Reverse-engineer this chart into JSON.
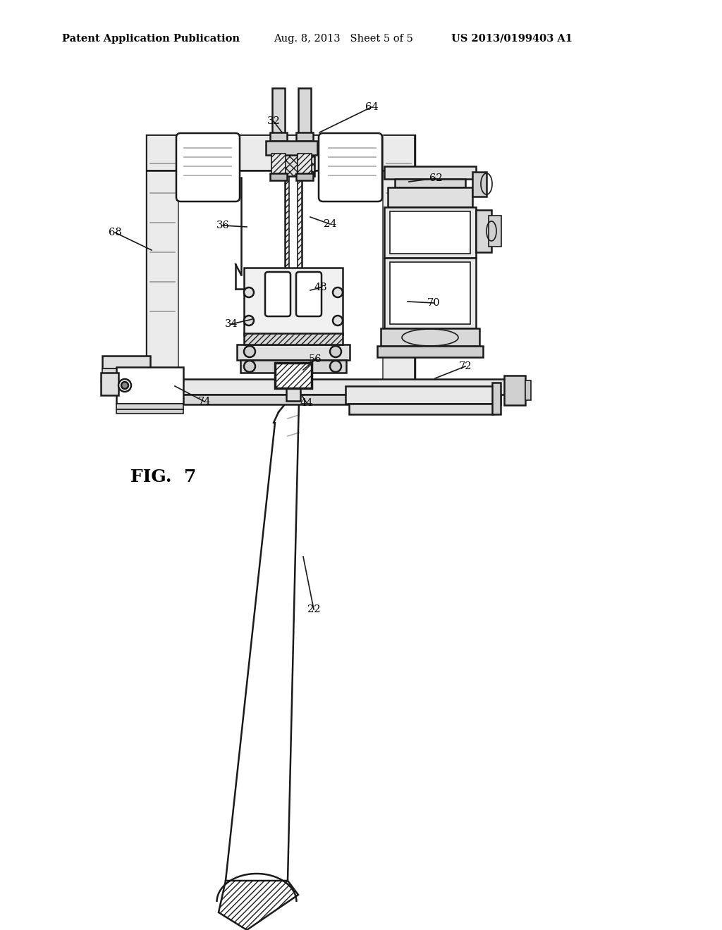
{
  "bg_color": "#ffffff",
  "header_left": "Patent Application Publication",
  "header_mid": "Aug. 8, 2013   Sheet 5 of 5",
  "header_right": "US 2013/0199403 A1",
  "fig_label": "FIG.  7",
  "lc": "#1a1a1a",
  "tc": "#000000",
  "labels": [
    [
      "22",
      445,
      865,
      430,
      790,
      "left"
    ],
    [
      "24",
      468,
      318,
      440,
      308,
      "left"
    ],
    [
      "32",
      388,
      172,
      400,
      188,
      "center"
    ],
    [
      "34",
      328,
      460,
      358,
      453,
      "right"
    ],
    [
      "36",
      316,
      320,
      350,
      322,
      "right"
    ],
    [
      "44",
      435,
      572,
      426,
      558,
      "center"
    ],
    [
      "48",
      455,
      408,
      440,
      412,
      "left"
    ],
    [
      "56",
      447,
      510,
      430,
      525,
      "left"
    ],
    [
      "62",
      618,
      253,
      580,
      258,
      "left"
    ],
    [
      "64",
      527,
      152,
      453,
      188,
      "left"
    ],
    [
      "68",
      163,
      330,
      215,
      355,
      "right"
    ],
    [
      "70",
      615,
      430,
      578,
      428,
      "left"
    ],
    [
      "72",
      660,
      520,
      617,
      537,
      "left"
    ],
    [
      "74",
      290,
      570,
      248,
      548,
      "right"
    ]
  ]
}
